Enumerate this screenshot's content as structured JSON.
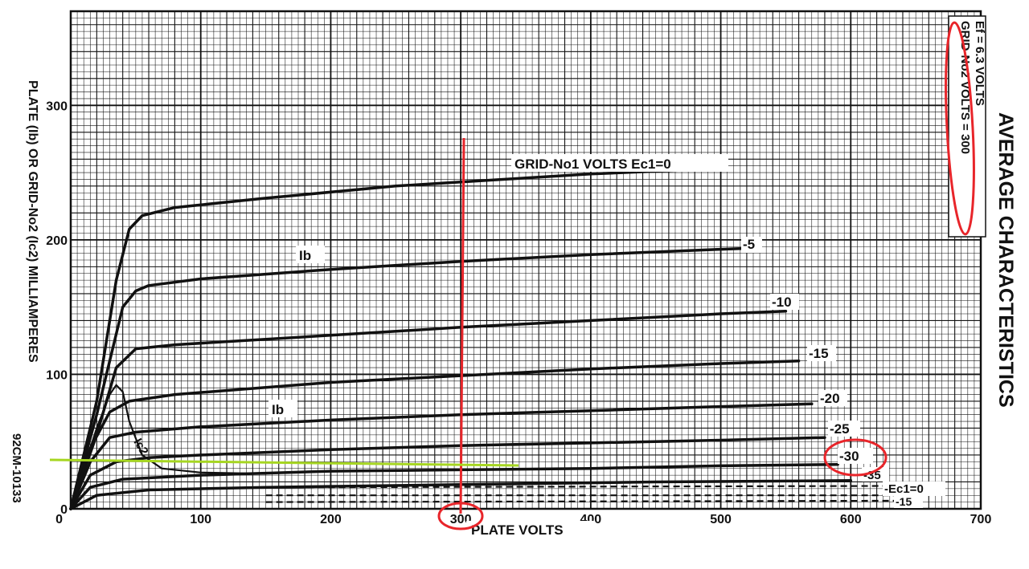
{
  "chart_data": {
    "type": "line",
    "title": "AVERAGE CHARACTERISTICS",
    "xlabel": "PLATE VOLTS",
    "ylabel": "PLATE (Ib) OR GRID-No2 (Ic2) MILLIAMPERES",
    "figure_code": "92CM-10133",
    "conditions": [
      "Ef = 6.3 VOLTS",
      "GRID-No2 VOLTS = 300"
    ],
    "xlim": [
      0,
      700
    ],
    "ylim": [
      0,
      370
    ],
    "x_ticks": [
      "0",
      "100",
      "200",
      "300",
      "400",
      "500",
      "600",
      "700"
    ],
    "y_ticks": [
      "0",
      "100",
      "200",
      "300"
    ],
    "grid": true,
    "curve_labels": {
      "Ec0": "GRID-No1 VOLTS Ec1=0",
      "Ib_upper": "Ib",
      "Ib_lower": "Ib",
      "Ic": "Ic2",
      "m5": "-5",
      "m10": "-10",
      "m15": "-15",
      "m20": "-20",
      "m25": "-25",
      "m30": "-30",
      "m35": "-35",
      "Ec0_lower": "-Ec1=0",
      "m15_lower": "-15"
    },
    "series": [
      {
        "name": "Ec1=0",
        "x": [
          0,
          20,
          35,
          45,
          55,
          80,
          150,
          250,
          300,
          350,
          400,
          450,
          500
        ],
        "y": [
          0,
          80,
          170,
          208,
          218,
          224,
          231,
          240,
          243,
          246,
          249,
          251,
          253
        ]
      },
      {
        "name": "-5",
        "x": [
          0,
          20,
          40,
          50,
          60,
          100,
          200,
          300,
          400,
          500,
          530
        ],
        "y": [
          0,
          70,
          150,
          162,
          166,
          171,
          178,
          184,
          189,
          193,
          194
        ]
      },
      {
        "name": "-10",
        "x": [
          0,
          20,
          35,
          50,
          80,
          200,
          300,
          400,
          500,
          550
        ],
        "y": [
          0,
          55,
          105,
          119,
          122,
          129,
          135,
          140,
          145,
          147
        ]
      },
      {
        "name": "-15",
        "x": [
          0,
          15,
          30,
          45,
          80,
          200,
          300,
          400,
          500,
          560
        ],
        "y": [
          0,
          45,
          72,
          80,
          85,
          94,
          99,
          104,
          108,
          110
        ]
      },
      {
        "name": "-20",
        "x": [
          0,
          15,
          30,
          50,
          100,
          200,
          300,
          400,
          500,
          570
        ],
        "y": [
          0,
          35,
          53,
          57,
          61,
          66,
          70,
          73,
          76,
          78
        ]
      },
      {
        "name": "-25",
        "x": [
          0,
          15,
          35,
          60,
          100,
          200,
          300,
          400,
          500,
          580
        ],
        "y": [
          0,
          25,
          35,
          38,
          40,
          44,
          47,
          49,
          51,
          53
        ]
      },
      {
        "name": "-30",
        "x": [
          0,
          15,
          40,
          100,
          200,
          300,
          400,
          500,
          590
        ],
        "y": [
          0,
          16,
          22,
          25,
          28,
          29,
          30,
          32,
          33
        ]
      },
      {
        "name": "-35",
        "x": [
          0,
          20,
          60,
          150,
          300,
          450,
          600
        ],
        "y": [
          0,
          10,
          14,
          16,
          18,
          20,
          21
        ]
      },
      {
        "name": "Ic2 (Ec1=0)",
        "x": [
          0,
          20,
          30,
          35,
          40,
          45,
          55,
          70,
          100,
          150
        ],
        "y": [
          0,
          60,
          85,
          92,
          87,
          65,
          40,
          30,
          27,
          26
        ]
      }
    ],
    "ic2_dashed": [
      {
        "name": "Ic2 Ec1=0",
        "x": [
          150,
          630
        ],
        "y": [
          16,
          17
        ]
      },
      {
        "name": "Ic2 -15",
        "x": [
          150,
          640
        ],
        "y": [
          10,
          10
        ]
      },
      {
        "name": "Ic2 low",
        "x": [
          150,
          650
        ],
        "y": [
          5,
          6
        ]
      }
    ],
    "annotations": {
      "vertical_marker_x": 300,
      "horizontal_marker_y": 33,
      "circle_labels": [
        "300",
        "-30",
        "GRID-No2 VOLTS = 300"
      ]
    },
    "colors": {
      "annotation_red": "#e8252a",
      "annotation_green": "#a6d621",
      "ink": "#111111"
    }
  }
}
